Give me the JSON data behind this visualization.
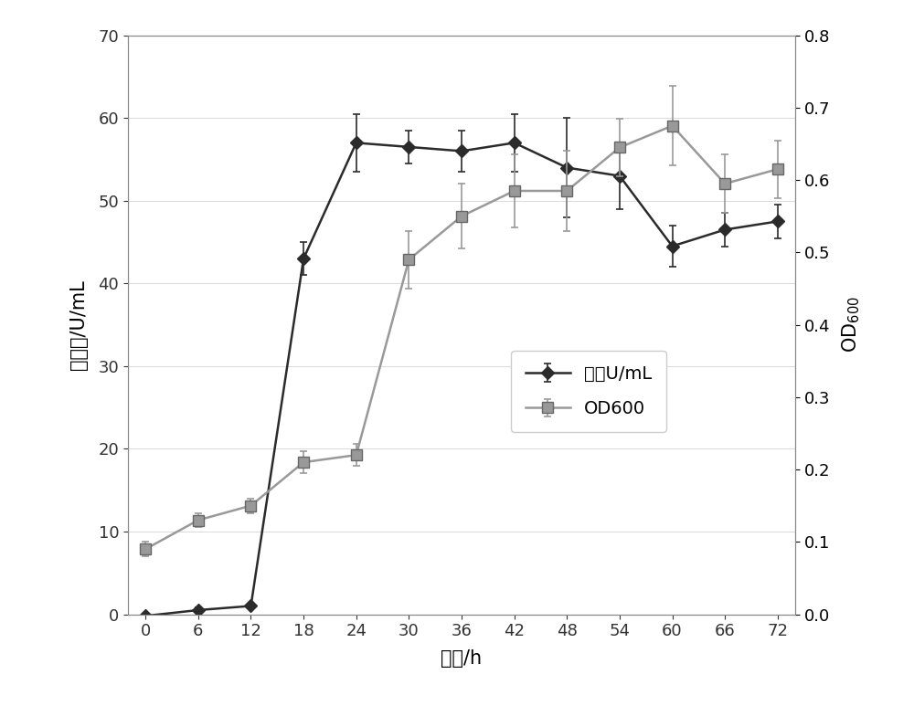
{
  "enzyme_x": [
    0,
    6,
    12,
    18,
    24,
    30,
    36,
    42,
    48,
    54,
    60,
    66,
    72
  ],
  "enzyme_y": [
    -0.2,
    0.5,
    1.0,
    43.0,
    57.0,
    56.5,
    56.0,
    57.0,
    54.0,
    53.0,
    44.5,
    46.5,
    47.5
  ],
  "enzyme_err": [
    0.3,
    0.3,
    0.3,
    2.0,
    3.5,
    2.0,
    2.5,
    3.5,
    6.0,
    4.0,
    2.5,
    2.0,
    2.0
  ],
  "od600_x": [
    0,
    6,
    12,
    18,
    24,
    30,
    36,
    42,
    48,
    54,
    60,
    66,
    72
  ],
  "od600_y": [
    0.09,
    0.13,
    0.15,
    0.21,
    0.22,
    0.49,
    0.55,
    0.585,
    0.585,
    0.645,
    0.675,
    0.595,
    0.615
  ],
  "od600_err": [
    0.01,
    0.01,
    0.01,
    0.015,
    0.015,
    0.04,
    0.045,
    0.05,
    0.055,
    0.04,
    0.055,
    0.04,
    0.04
  ],
  "ylabel_left": "酯活力/U/mL",
  "xlabel": "时间/h",
  "ylim_left": [
    0,
    70
  ],
  "ylim_right": [
    0,
    0.8
  ],
  "legend_enzyme": "酯活U/mL",
  "legend_od": "OD600",
  "line_color_enzyme": "#2b2b2b",
  "line_color_od": "#999999",
  "xticks": [
    0,
    6,
    12,
    18,
    24,
    30,
    36,
    42,
    48,
    54,
    60,
    66,
    72
  ],
  "yticks_left": [
    0,
    10,
    20,
    30,
    40,
    50,
    60,
    70
  ],
  "yticks_right": [
    0,
    0.1,
    0.2,
    0.3,
    0.4,
    0.5,
    0.6,
    0.7,
    0.8
  ],
  "figsize": [
    10.0,
    7.73
  ]
}
